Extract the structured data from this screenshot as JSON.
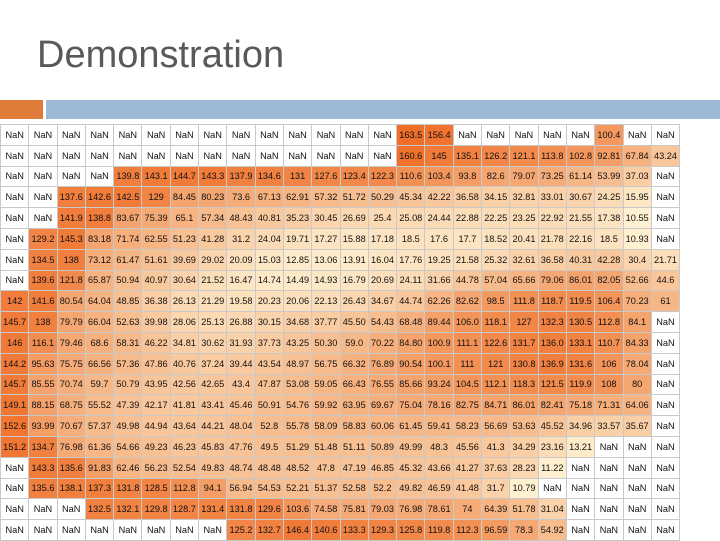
{
  "slide": {
    "title": "Demonstration"
  },
  "colors": {
    "accent_orange": "#E07B39",
    "accent_blue": "#9EB9D6",
    "nan_cell": "#ffffff"
  },
  "table": {
    "rows": [
      [
        "NaN",
        "NaN",
        "NaN",
        "NaN",
        "NaN",
        "NaN",
        "NaN",
        "NaN",
        "NaN",
        "NaN",
        "NaN",
        "NaN",
        "NaN",
        "NaN",
        "163.5",
        "156.4",
        "NaN",
        "NaN",
        "NaN",
        "NaN",
        "NaN",
        "100.4",
        "NaN",
        "NaN"
      ],
      [
        "NaN",
        "NaN",
        "NaN",
        "NaN",
        "NaN",
        "NaN",
        "NaN",
        "NaN",
        "NaN",
        "NaN",
        "NaN",
        "NaN",
        "NaN",
        "NaN",
        "160.6",
        "145",
        "135.1",
        "126.2",
        "121.1",
        "113.8",
        "102.8",
        "92.81",
        "67.84",
        "43.24"
      ],
      [
        "NaN",
        "NaN",
        "NaN",
        "NaN",
        "139.8",
        "143.1",
        "144.7",
        "143.3",
        "137.9",
        "134.6",
        "131",
        "127.6",
        "123.4",
        "122.3",
        "110.6",
        "103.4",
        "93.8",
        "82.6",
        "79.07",
        "73.25",
        "61.14",
        "53.99",
        "37.03",
        "NaN"
      ],
      [
        "NaN",
        "NaN",
        "137.6",
        "142.6",
        "142.5",
        "129",
        "84.45",
        "80.23",
        "73.6",
        "67.13",
        "62.91",
        "57.32",
        "51.72",
        "50.29",
        "45.34",
        "42.22",
        "36.58",
        "34.15",
        "32.81",
        "33.01",
        "30.67",
        "24.25",
        "15.95",
        "NaN"
      ],
      [
        "NaN",
        "NaN",
        "141.9",
        "138.8",
        "83.67",
        "75.39",
        "65.1",
        "57.34",
        "48.43",
        "40.81",
        "35.23",
        "30.45",
        "26.69",
        "25.4",
        "25.08",
        "24.44",
        "22.88",
        "22.25",
        "23.25",
        "22.92",
        "21.55",
        "17.38",
        "10.55",
        "NaN"
      ],
      [
        "NaN",
        "129.2",
        "145.3",
        "83.18",
        "71.74",
        "62.55",
        "51.23",
        "41.28",
        "31.2",
        "24.04",
        "19.71",
        "17.27",
        "15.88",
        "17.18",
        "18.5",
        "17.6",
        "17.7",
        "18.52",
        "20.41",
        "21.78",
        "22.16",
        "18.5",
        "10.93",
        "NaN"
      ],
      [
        "NaN",
        "134.5",
        "138",
        "73.12",
        "61.47",
        "51.61",
        "39.69",
        "29.02",
        "20.09",
        "15.03",
        "12.85",
        "13.06",
        "13.91",
        "16.04",
        "17.76",
        "19.25",
        "21.58",
        "25.32",
        "32.61",
        "36.58",
        "40.31",
        "42.28",
        "30.4",
        "21.71"
      ],
      [
        "NaN",
        "139.6",
        "121.8",
        "65.87",
        "50.94",
        "40.97",
        "30.64",
        "21.52",
        "16.47",
        "14.74",
        "14.49",
        "14.93",
        "16.79",
        "20.69",
        "24.11",
        "31.66",
        "44.78",
        "57.04",
        "65.66",
        "79.06",
        "86.01",
        "82.05",
        "52.66",
        "44.6"
      ],
      [
        "142",
        "141.6",
        "80.54",
        "64.04",
        "48.85",
        "36.38",
        "26.13",
        "21.29",
        "19.58",
        "20.23",
        "20.06",
        "22.13",
        "26.43",
        "34.67",
        "44.74",
        "62.26",
        "82.62",
        "98.5",
        "111.8",
        "118.7",
        "119.5",
        "106.4",
        "70.23",
        "61"
      ],
      [
        "145.7",
        "138",
        "79.79",
        "66.04",
        "52.63",
        "39.98",
        "28.06",
        "25.13",
        "26.88",
        "30.15",
        "34.68",
        "37.77",
        "45.50",
        "54.43",
        "68.48",
        "89.44",
        "106.0",
        "118.1",
        "127",
        "132.3",
        "130.5",
        "112.8",
        "84.1",
        "NaN"
      ],
      [
        "146",
        "116.1",
        "79.46",
        "68.6",
        "58.31",
        "46.22",
        "34.81",
        "30.62",
        "31.93",
        "37.73",
        "43.25",
        "50.30",
        "59.0",
        "70.22",
        "84.80",
        "100.9",
        "111.1",
        "122.6",
        "131.7",
        "136.0",
        "133.1",
        "110.7",
        "84.33",
        "NaN"
      ],
      [
        "144.2",
        "95.63",
        "75.75",
        "66.56",
        "57.36",
        "47.86",
        "40.76",
        "37.24",
        "39.44",
        "43.54",
        "48.97",
        "56.75",
        "66.32",
        "76.89",
        "90.54",
        "100.1",
        "111",
        "121",
        "130.8",
        "136.9",
        "131.6",
        "106",
        "78.04",
        "NaN"
      ],
      [
        "145.7",
        "85.55",
        "70.74",
        "59.7",
        "50.79",
        "43.95",
        "42.56",
        "42.65",
        "43.4",
        "47.87",
        "53.08",
        "59.05",
        "66.43",
        "76.55",
        "85.66",
        "93.24",
        "104.5",
        "112.1",
        "118.3",
        "121.5",
        "119.9",
        "108",
        "80",
        "NaN"
      ],
      [
        "149.1",
        "88.15",
        "68.75",
        "55.52",
        "47.39",
        "42.17",
        "41.81",
        "43.41",
        "45.46",
        "50.91",
        "54.76",
        "59.92",
        "63.95",
        "69.67",
        "75.04",
        "78.16",
        "82.75",
        "84.71",
        "86.01",
        "82.41",
        "75.18",
        "71.31",
        "64.06",
        "NaN"
      ],
      [
        "152.6",
        "93.99",
        "70.67",
        "57.37",
        "49.98",
        "44.94",
        "43.64",
        "44.21",
        "48.04",
        "52.8",
        "55.78",
        "58.09",
        "58.83",
        "60.06",
        "61.45",
        "59.41",
        "58.23",
        "56.69",
        "53.63",
        "45.52",
        "34.96",
        "33.57",
        "35.67",
        "NaN"
      ],
      [
        "151.2",
        "134.7",
        "76.98",
        "61.36",
        "54.66",
        "49.23",
        "46.23",
        "45.83",
        "47.76",
        "49.5",
        "51.29",
        "51.48",
        "51.11",
        "50.89",
        "49.99",
        "48.3",
        "45.56",
        "41.3",
        "34.29",
        "23.16",
        "13.21",
        "NaN",
        "NaN",
        "NaN"
      ],
      [
        "NaN",
        "143.3",
        "135.6",
        "91.83",
        "62.46",
        "56.23",
        "52.54",
        "49.83",
        "48.74",
        "48.48",
        "48.52",
        "47.8",
        "47.19",
        "46.85",
        "45.32",
        "43.66",
        "41.27",
        "37.63",
        "28.23",
        "11.22",
        "NaN",
        "NaN",
        "NaN",
        "NaN"
      ],
      [
        "NaN",
        "135.6",
        "138.1",
        "137.3",
        "131.8",
        "128.5",
        "112.8",
        "94.1",
        "56.94",
        "54.53",
        "52.21",
        "51.37",
        "52.58",
        "52.2",
        "49.82",
        "46.59",
        "41.48",
        "31.7",
        "10.79",
        "NaN",
        "NaN",
        "NaN",
        "NaN",
        "NaN"
      ],
      [
        "NaN",
        "NaN",
        "NaN",
        "132.5",
        "132.1",
        "129.8",
        "128.7",
        "131.4",
        "131.8",
        "129.6",
        "103.6",
        "74.58",
        "75.81",
        "79.03",
        "76.98",
        "78.61",
        "74",
        "64.39",
        "51.78",
        "31.04",
        "NaN",
        "NaN",
        "NaN",
        "NaN"
      ],
      [
        "NaN",
        "NaN",
        "NaN",
        "NaN",
        "NaN",
        "NaN",
        "NaN",
        "NaN",
        "125.2",
        "132.7",
        "146.4",
        "140.6",
        "133.3",
        "129.3",
        "125.8",
        "119.8",
        "112.3",
        "96.59",
        "78.3",
        "54.92",
        "NaN",
        "NaN",
        "NaN",
        "NaN"
      ]
    ]
  }
}
